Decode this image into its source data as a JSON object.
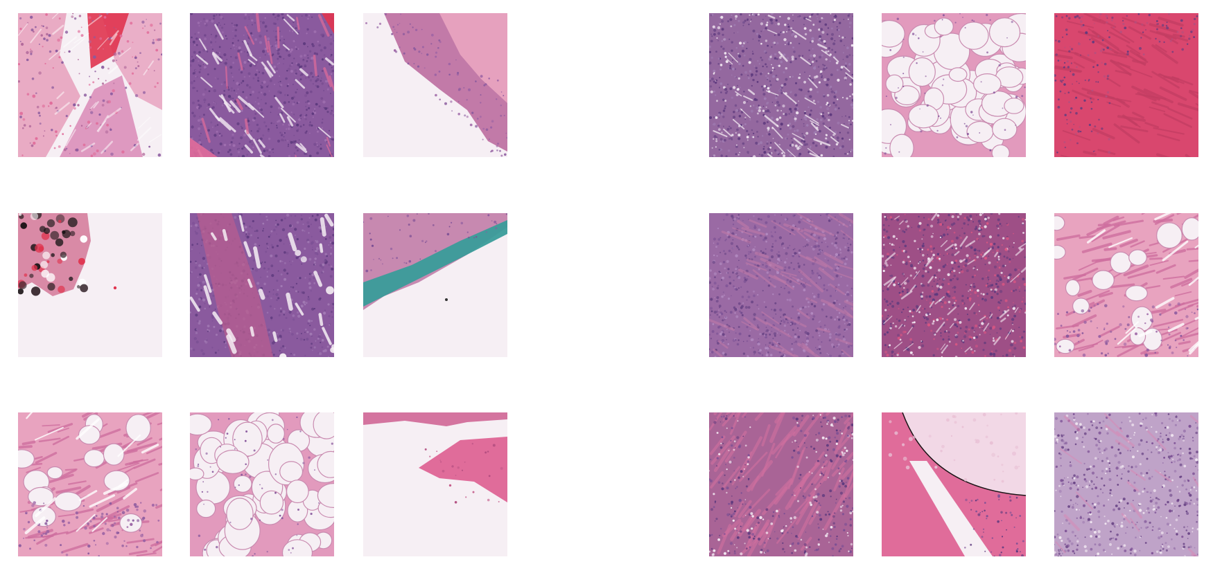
{
  "figure": {
    "layout": {
      "panels": 2,
      "rows": 3,
      "cols": 3
    },
    "palette": {
      "background": "#f3eef3",
      "eosin_pink": "#e06c9a",
      "eosin_light": "#e8a3bf",
      "hematoxylin_purple": "#8a5a9e",
      "hematoxylin_dark": "#5e3a7e",
      "fat_white": "#f6eff4",
      "ink_black": "#1a1416",
      "ink_teal": "#3a9c9a",
      "blood_red": "#e0344f"
    },
    "left_panel": {
      "patches": [
        {
          "name": "patch-l-r1c1",
          "type": "loose-tissue-with-blood"
        },
        {
          "name": "patch-l-r1c2",
          "type": "dense-tumor-nests"
        },
        {
          "name": "patch-l-r1c3",
          "type": "edge-tissue-diagonal"
        },
        {
          "name": "patch-l-r2c1",
          "type": "ink-artifact-corner"
        },
        {
          "name": "patch-l-r2c2",
          "type": "tumor-with-stroma"
        },
        {
          "name": "patch-l-r2c3",
          "type": "teal-ink-edge"
        },
        {
          "name": "patch-l-r3c1",
          "type": "stroma-with-fat"
        },
        {
          "name": "patch-l-r3c2",
          "type": "adipose"
        },
        {
          "name": "patch-l-r3c3",
          "type": "edge-pink-blob"
        }
      ]
    },
    "right_panel": {
      "patches": [
        {
          "name": "patch-r-r1c1",
          "type": "dense-purple"
        },
        {
          "name": "patch-r-r1c2",
          "type": "adipose"
        },
        {
          "name": "patch-r-r1c3",
          "type": "red-stroma"
        },
        {
          "name": "patch-r-r2c1",
          "type": "dense-purple-streaks"
        },
        {
          "name": "patch-r-r2c2",
          "type": "dense-mixed"
        },
        {
          "name": "patch-r-r2c3",
          "type": "stroma-with-fat"
        },
        {
          "name": "patch-r-r3c1",
          "type": "mixed-stroma"
        },
        {
          "name": "patch-r-r3c2",
          "type": "curved-edge-fat"
        },
        {
          "name": "patch-r-r3c3",
          "type": "glandular-purple"
        }
      ]
    }
  }
}
